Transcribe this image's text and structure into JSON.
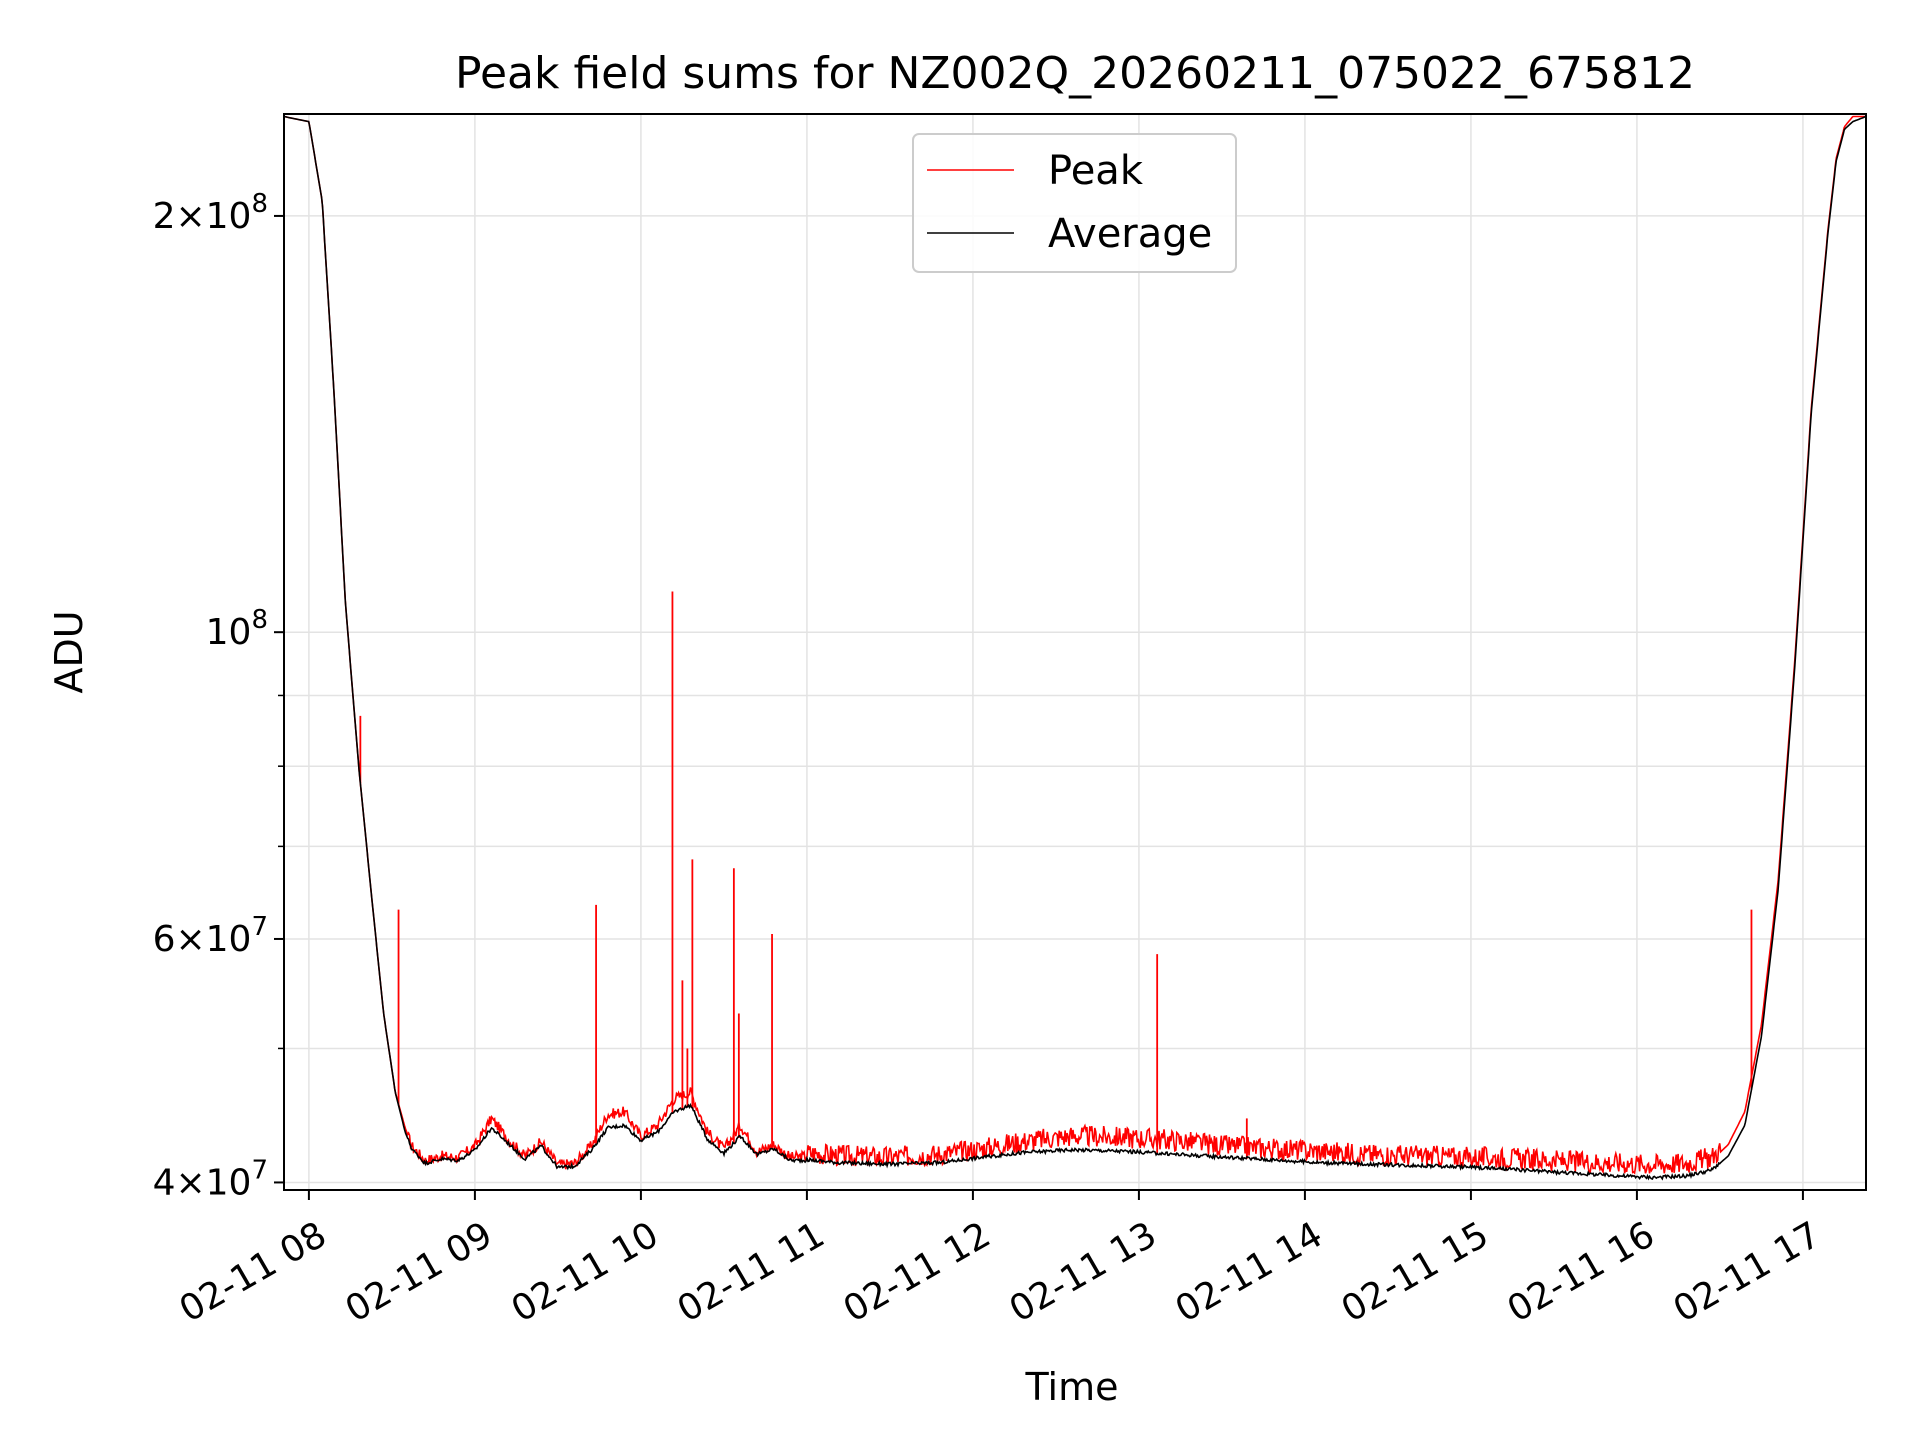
{
  "chart_data": {
    "type": "line",
    "title": "Peak field sums for NZ002Q_20260211_075022_675812",
    "xlabel": "Time",
    "ylabel": "ADU",
    "yscale": "log",
    "ylim": [
      39500000,
      237000000
    ],
    "xlim_hours": [
      7.85,
      17.38
    ],
    "grid": true,
    "legend_position": "top-center",
    "x_tick_labels": [
      "02-11 08",
      "02-11 09",
      "02-11 10",
      "02-11 11",
      "02-11 12",
      "02-11 13",
      "02-11 14",
      "02-11 15",
      "02-11 16",
      "02-11 17"
    ],
    "x_tick_hours": [
      8,
      9,
      10,
      11,
      12,
      13,
      14,
      15,
      16,
      17
    ],
    "y_major_ticks": [
      {
        "value": 40000000,
        "mant": "4",
        "exp": "7"
      },
      {
        "value": 60000000,
        "mant": "6",
        "exp": "7"
      },
      {
        "value": 100000000,
        "mant": "",
        "exp": "8"
      },
      {
        "value": 200000000,
        "mant": "2",
        "exp": "8"
      }
    ],
    "y_minor_ticks": [
      50000000,
      70000000,
      80000000,
      90000000
    ],
    "series": [
      {
        "name": "Peak",
        "color": "#ff0000",
        "description": "peak field sum; follows average with spikes",
        "x": [
          7.85,
          8.0,
          8.08,
          8.15,
          8.22,
          8.3,
          8.38,
          8.45,
          8.52,
          8.58,
          8.62,
          8.7,
          8.8,
          8.9,
          9.0,
          9.1,
          9.2,
          9.3,
          9.4,
          9.5,
          9.6,
          9.7,
          9.8,
          9.9,
          10.0,
          10.1,
          10.2,
          10.3,
          10.4,
          10.5,
          10.6,
          10.7,
          10.8,
          10.9,
          11.0,
          11.2,
          11.5,
          11.8,
          12.0,
          12.3,
          12.6,
          12.9,
          13.2,
          13.5,
          13.8,
          14.1,
          14.4,
          14.7,
          15.0,
          15.3,
          15.6,
          15.9,
          16.1,
          16.3,
          16.45,
          16.55,
          16.65,
          16.75,
          16.85,
          16.95,
          17.05,
          17.15,
          17.2,
          17.25,
          17.3,
          17.38
        ],
        "y": [
          236000000,
          234000000,
          205000000,
          150000000,
          105000000,
          80000000,
          64000000,
          53000000,
          46500000,
          43800000,
          42500000,
          41500000,
          41800000,
          41700000,
          42500000,
          44500000,
          43000000,
          41800000,
          42800000,
          41200000,
          41300000,
          42500000,
          44800000,
          45000000,
          43200000,
          44000000,
          46000000,
          46500000,
          43500000,
          42300000,
          44000000,
          42100000,
          42600000,
          41700000,
          41800000,
          41600000,
          41500000,
          41700000,
          42000000,
          42600000,
          43000000,
          42900000,
          42700000,
          42300000,
          42100000,
          41900000,
          41700000,
          41600000,
          41500000,
          41400000,
          41200000,
          41100000,
          41000000,
          41100000,
          41500000,
          42600000,
          45000000,
          52000000,
          66000000,
          95000000,
          145000000,
          195000000,
          220000000,
          232000000,
          236000000,
          236000000
        ]
      },
      {
        "name": "Average",
        "color": "#000000",
        "description": "average field sum",
        "x": [
          7.85,
          8.0,
          8.08,
          8.15,
          8.22,
          8.3,
          8.38,
          8.45,
          8.52,
          8.58,
          8.62,
          8.7,
          8.8,
          8.9,
          9.0,
          9.1,
          9.2,
          9.3,
          9.4,
          9.5,
          9.6,
          9.7,
          9.8,
          9.9,
          10.0,
          10.1,
          10.2,
          10.3,
          10.4,
          10.5,
          10.6,
          10.7,
          10.8,
          10.9,
          11.0,
          11.2,
          11.5,
          11.8,
          12.0,
          12.3,
          12.6,
          12.9,
          13.2,
          13.5,
          13.8,
          14.1,
          14.4,
          14.7,
          15.0,
          15.3,
          15.6,
          15.9,
          16.1,
          16.3,
          16.45,
          16.55,
          16.65,
          16.75,
          16.85,
          16.95,
          17.05,
          17.15,
          17.2,
          17.25,
          17.3,
          17.38
        ],
        "y": [
          236000000,
          234000000,
          205000000,
          150000000,
          105000000,
          80000000,
          64000000,
          53000000,
          46500000,
          43500000,
          42300000,
          41300000,
          41600000,
          41500000,
          42200000,
          43800000,
          42700000,
          41600000,
          42500000,
          41000000,
          41100000,
          42200000,
          43800000,
          44000000,
          42900000,
          43500000,
          45000000,
          45500000,
          43000000,
          42000000,
          43200000,
          41900000,
          42300000,
          41500000,
          41500000,
          41300000,
          41200000,
          41300000,
          41600000,
          42000000,
          42200000,
          42100000,
          41900000,
          41700000,
          41500000,
          41300000,
          41200000,
          41100000,
          41000000,
          40800000,
          40600000,
          40400000,
          40300000,
          40400000,
          40800000,
          41800000,
          44000000,
          51000000,
          65000000,
          94000000,
          144000000,
          194000000,
          219000000,
          231000000,
          234000000,
          236000000
        ]
      }
    ],
    "peak_spikes": [
      {
        "x": 8.31,
        "y": 87000000
      },
      {
        "x": 8.54,
        "y": 63000000
      },
      {
        "x": 9.73,
        "y": 63500000
      },
      {
        "x": 10.19,
        "y": 107000000
      },
      {
        "x": 10.25,
        "y": 56000000
      },
      {
        "x": 10.28,
        "y": 50000000
      },
      {
        "x": 10.31,
        "y": 68500000
      },
      {
        "x": 10.56,
        "y": 67500000
      },
      {
        "x": 10.59,
        "y": 53000000
      },
      {
        "x": 10.79,
        "y": 60500000
      },
      {
        "x": 13.11,
        "y": 58500000
      },
      {
        "x": 13.65,
        "y": 44500000
      },
      {
        "x": 16.69,
        "y": 63000000
      }
    ]
  }
}
